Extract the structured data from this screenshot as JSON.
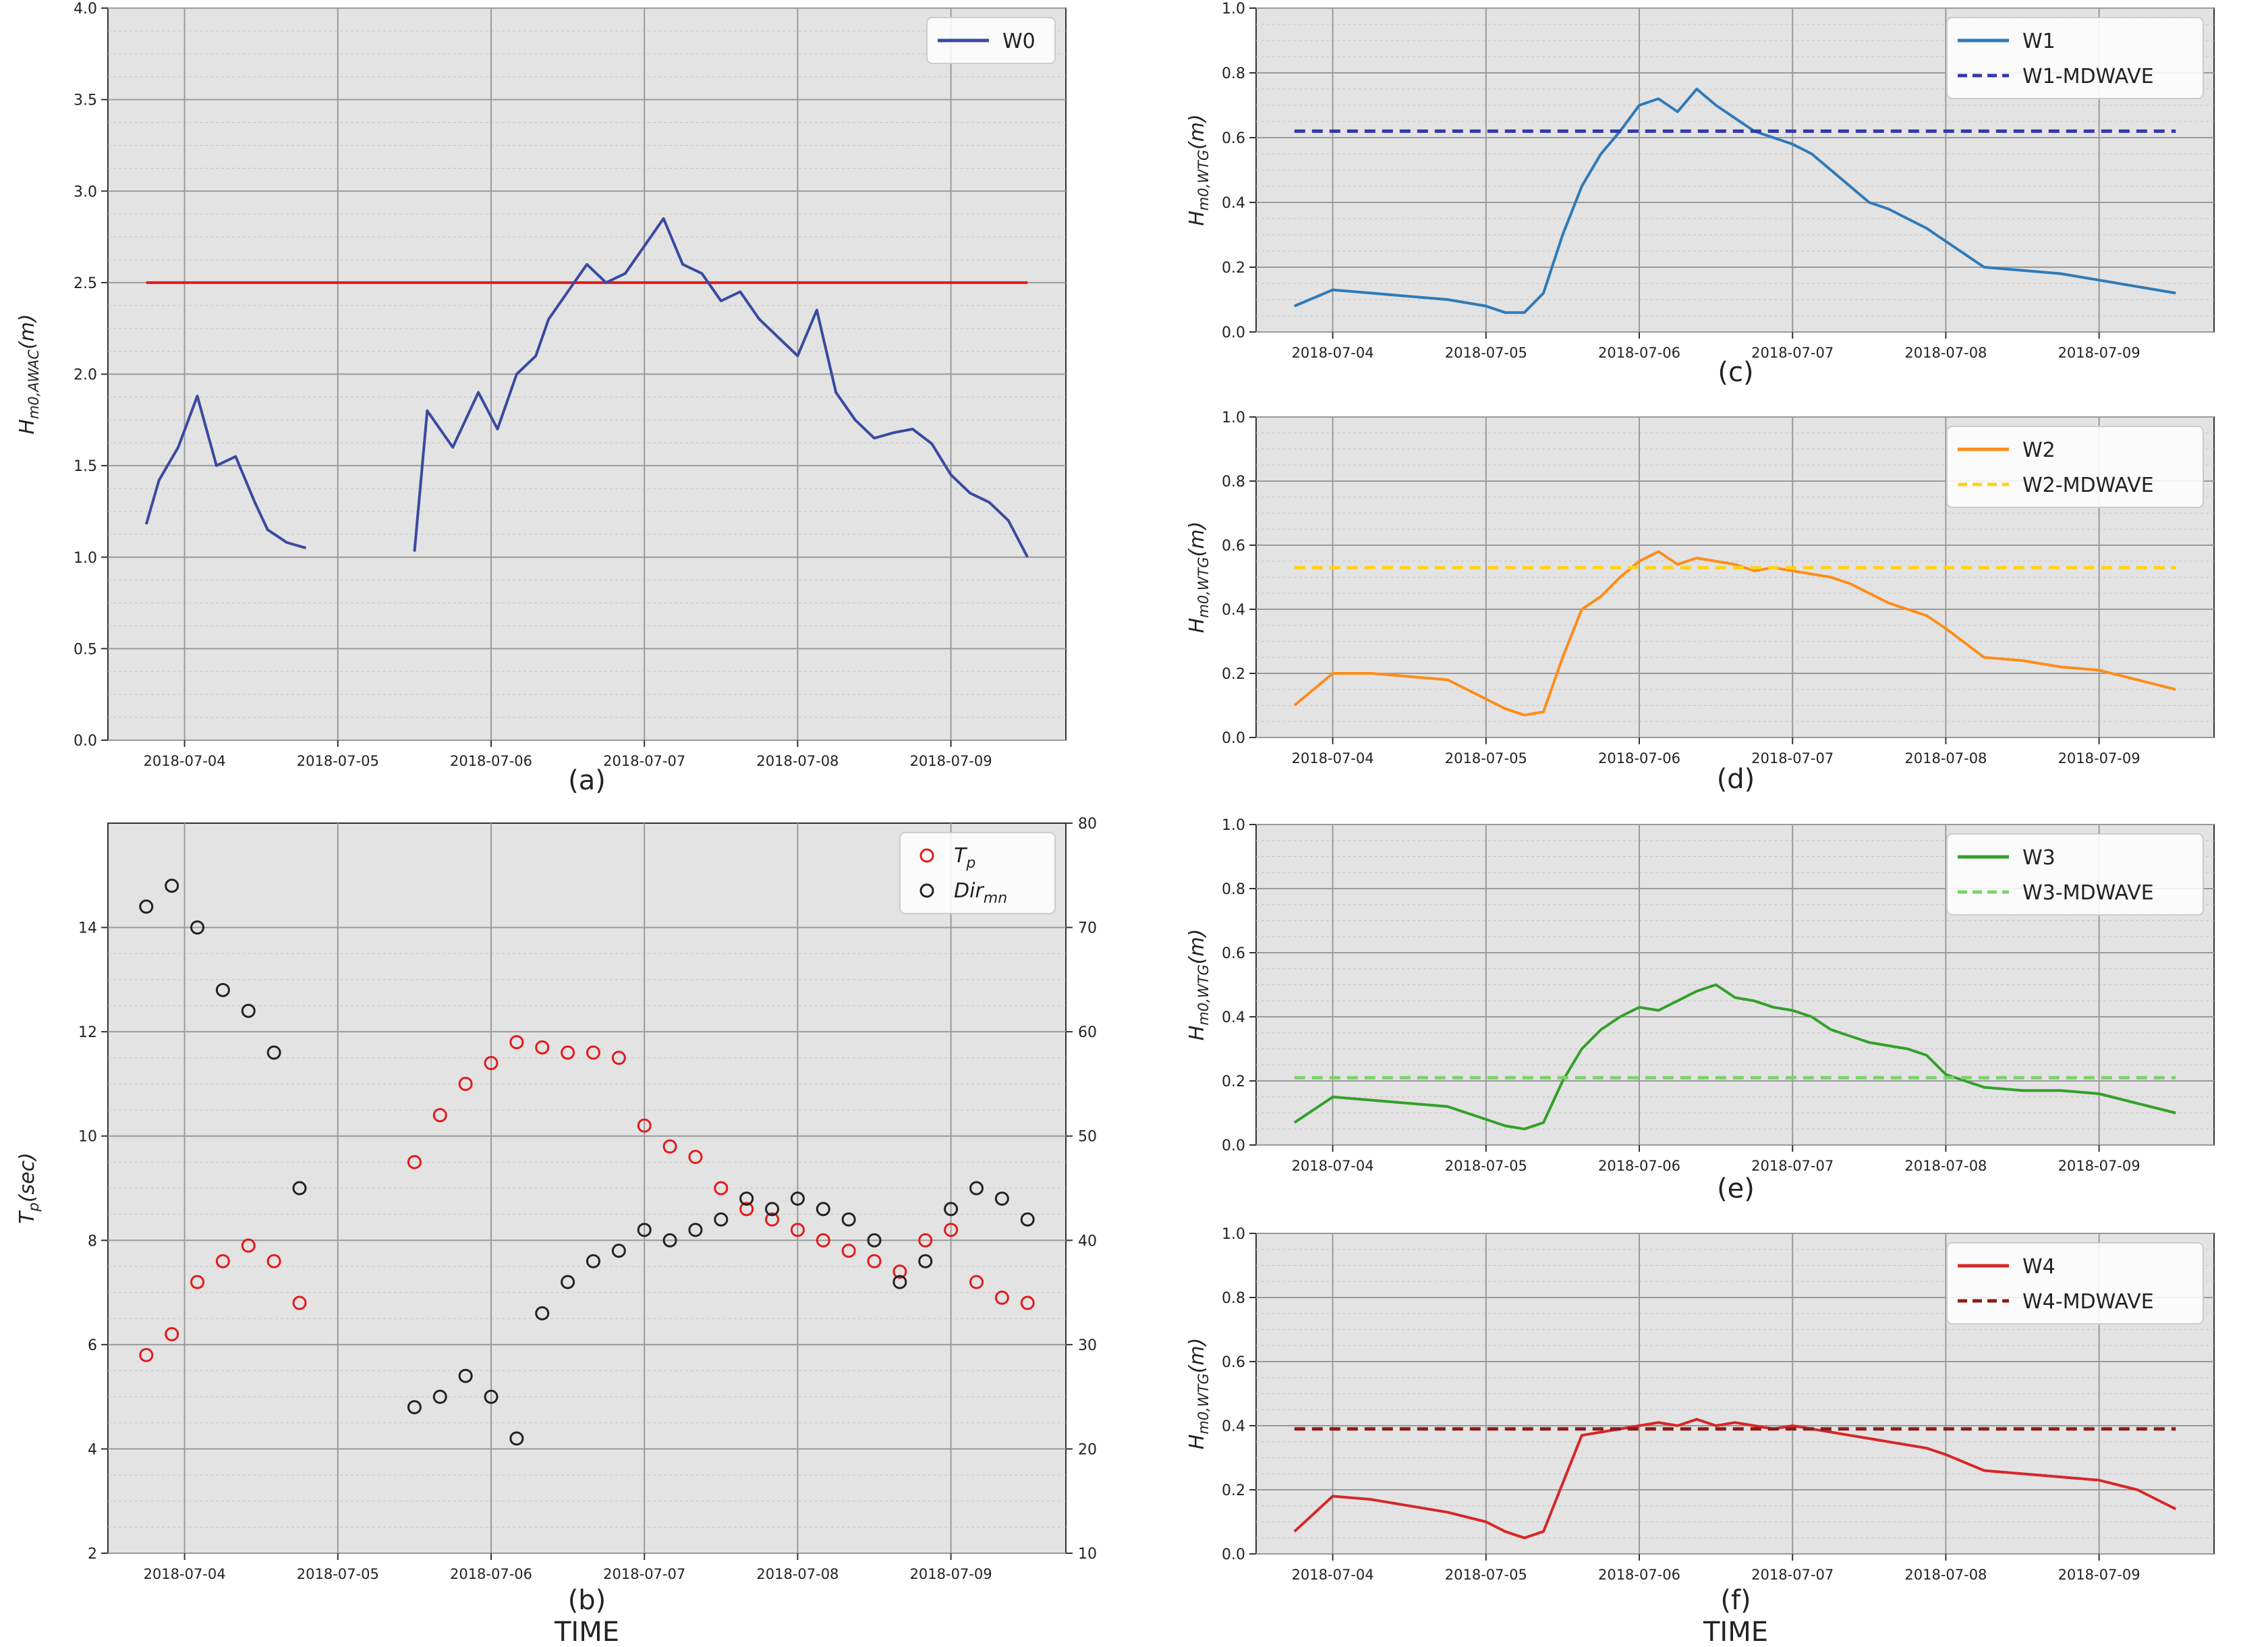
{
  "figure": {
    "x_ticks": [
      "2018-07-04",
      "2018-07-05",
      "2018-07-06",
      "2018-07-07",
      "2018-07-08",
      "2018-07-09"
    ],
    "bottom_xlabel": "TIME"
  },
  "chart_data": [
    {
      "id": "a",
      "panel_label": "(a)",
      "type": "line",
      "xlabel": "",
      "ylabel": "H_{m0,AWAC}(m)",
      "ylabel_main": "H",
      "ylabel_sub": "m0,AWAC",
      "ylabel_tail": "(m)",
      "xlim": [
        "2018-07-03T12:00",
        "2018-07-09T18:00"
      ],
      "ylim": [
        0,
        4.0
      ],
      "yticks": [
        "0.0",
        "0.5",
        "1.0",
        "1.5",
        "2.0",
        "2.5",
        "3.0",
        "3.5",
        "4.0"
      ],
      "grid": true,
      "legend_position": "top-right",
      "series": [
        {
          "name": "W0",
          "color": "#3a4aa0",
          "style": "solid",
          "x": [
            "2018-07-03T18:00",
            "2018-07-03T20:00",
            "2018-07-03T23:00",
            "2018-07-04T02:00",
            "2018-07-04T05:00",
            "2018-07-04T08:00",
            "2018-07-04T11:00",
            "2018-07-04T13:00",
            "2018-07-04T16:00",
            "2018-07-04T19:00"
          ],
          "y": [
            1.18,
            1.42,
            1.6,
            1.88,
            1.5,
            1.55,
            1.3,
            1.15,
            1.08,
            1.05
          ]
        },
        {
          "name": "",
          "color": "#3a4aa0",
          "style": "solid",
          "x": [
            "2018-07-05T12:00",
            "2018-07-05T14:00",
            "2018-07-05T18:00",
            "2018-07-05T22:00",
            "2018-07-06T01:00",
            "2018-07-06T04:00",
            "2018-07-06T07:00",
            "2018-07-06T09:00",
            "2018-07-06T12:00",
            "2018-07-06T15:00",
            "2018-07-06T18:00",
            "2018-07-06T21:00",
            "2018-07-07T00:00",
            "2018-07-07T03:00",
            "2018-07-07T06:00",
            "2018-07-07T09:00",
            "2018-07-07T12:00",
            "2018-07-07T15:00",
            "2018-07-07T18:00",
            "2018-07-07T21:00",
            "2018-07-08T00:00",
            "2018-07-08T03:00",
            "2018-07-08T06:00",
            "2018-07-08T09:00",
            "2018-07-08T12:00",
            "2018-07-08T15:00",
            "2018-07-08T18:00",
            "2018-07-08T21:00",
            "2018-07-09T00:00",
            "2018-07-09T03:00",
            "2018-07-09T06:00",
            "2018-07-09T09:00",
            "2018-07-09T12:00"
          ],
          "y": [
            1.03,
            1.8,
            1.6,
            1.9,
            1.7,
            2.0,
            2.1,
            2.3,
            2.45,
            2.6,
            2.5,
            2.55,
            2.7,
            2.85,
            2.6,
            2.55,
            2.4,
            2.45,
            2.3,
            2.2,
            2.1,
            2.35,
            1.9,
            1.75,
            1.65,
            1.68,
            1.7,
            1.62,
            1.45,
            1.35,
            1.3,
            1.2,
            1.0
          ]
        }
      ],
      "reference_lines": [
        {
          "y": 2.5,
          "color": "#e41a1c",
          "style": "solid",
          "x_range": [
            "2018-07-03T18:00",
            "2018-07-09T12:00"
          ]
        }
      ]
    },
    {
      "id": "b",
      "panel_label": "(b)",
      "type": "scatter",
      "xlabel": "TIME",
      "ylabel": "T_p(sec)",
      "ylabel_main": "T",
      "ylabel_sub": "p",
      "ylabel_tail": "(sec)",
      "xlim": [
        "2018-07-03T12:00",
        "2018-07-09T18:00"
      ],
      "ylim": [
        2,
        16
      ],
      "yticks": [
        "2",
        "4",
        "6",
        "8",
        "10",
        "12",
        "14"
      ],
      "ylim_right": [
        10,
        80
      ],
      "yticks_right": [
        "10",
        "20",
        "30",
        "40",
        "50",
        "60",
        "70",
        "80"
      ],
      "grid": true,
      "legend_position": "top-right",
      "series": [
        {
          "name": "T_p",
          "legend_main": "T",
          "legend_sub": "p",
          "color": "#e41a1c",
          "marker": "open-circle",
          "axis": "left",
          "x": [
            "2018-07-03T18:00",
            "2018-07-03T22:00",
            "2018-07-04T02:00",
            "2018-07-04T06:00",
            "2018-07-04T10:00",
            "2018-07-04T14:00",
            "2018-07-04T18:00",
            "2018-07-05T12:00",
            "2018-07-05T16:00",
            "2018-07-05T20:00",
            "2018-07-06T00:00",
            "2018-07-06T04:00",
            "2018-07-06T08:00",
            "2018-07-06T12:00",
            "2018-07-06T16:00",
            "2018-07-06T20:00",
            "2018-07-07T00:00",
            "2018-07-07T04:00",
            "2018-07-07T08:00",
            "2018-07-07T12:00",
            "2018-07-07T16:00",
            "2018-07-07T20:00",
            "2018-07-08T00:00",
            "2018-07-08T04:00",
            "2018-07-08T08:00",
            "2018-07-08T12:00",
            "2018-07-08T16:00",
            "2018-07-08T20:00",
            "2018-07-09T00:00",
            "2018-07-09T04:00",
            "2018-07-09T08:00",
            "2018-07-09T12:00"
          ],
          "y": [
            5.8,
            6.2,
            7.2,
            7.6,
            7.9,
            7.6,
            6.8,
            9.5,
            10.4,
            11.0,
            11.4,
            11.8,
            11.7,
            11.6,
            11.6,
            11.5,
            10.2,
            9.8,
            9.6,
            9.0,
            8.6,
            8.4,
            8.2,
            8.0,
            7.8,
            7.6,
            7.4,
            8.0,
            8.2,
            7.2,
            6.9,
            6.8
          ]
        },
        {
          "name": "Dir_mn",
          "legend_main": "Dir",
          "legend_sub": "mn",
          "color": "#222222",
          "marker": "open-circle",
          "axis": "right",
          "x": [
            "2018-07-03T18:00",
            "2018-07-03T22:00",
            "2018-07-04T02:00",
            "2018-07-04T06:00",
            "2018-07-04T10:00",
            "2018-07-04T14:00",
            "2018-07-04T18:00",
            "2018-07-05T12:00",
            "2018-07-05T16:00",
            "2018-07-05T20:00",
            "2018-07-06T00:00",
            "2018-07-06T04:00",
            "2018-07-06T08:00",
            "2018-07-06T12:00",
            "2018-07-06T16:00",
            "2018-07-06T20:00",
            "2018-07-07T00:00",
            "2018-07-07T04:00",
            "2018-07-07T08:00",
            "2018-07-07T12:00",
            "2018-07-07T16:00",
            "2018-07-07T20:00",
            "2018-07-08T00:00",
            "2018-07-08T04:00",
            "2018-07-08T08:00",
            "2018-07-08T12:00",
            "2018-07-08T16:00",
            "2018-07-08T20:00",
            "2018-07-09T00:00",
            "2018-07-09T04:00",
            "2018-07-09T08:00",
            "2018-07-09T12:00"
          ],
          "y": [
            72,
            74,
            70,
            64,
            62,
            58,
            45,
            24,
            25,
            27,
            25,
            21,
            33,
            36,
            38,
            39,
            41,
            40,
            41,
            42,
            44,
            43,
            44,
            43,
            42,
            40,
            36,
            38,
            43,
            45,
            44,
            42
          ]
        }
      ]
    },
    {
      "id": "c",
      "panel_label": "(c)",
      "type": "line",
      "ylabel": "H_{m0,WTG}(m)",
      "ylabel_main": "H",
      "ylabel_sub": "m0,WTG",
      "ylabel_tail": "(m)",
      "xlim": [
        "2018-07-03T12:00",
        "2018-07-09T18:00"
      ],
      "ylim": [
        0,
        1.0
      ],
      "yticks": [
        "0.0",
        "0.2",
        "0.4",
        "0.6",
        "0.8",
        "1.0"
      ],
      "grid": true,
      "legend_position": "top-right",
      "series": [
        {
          "name": "W1",
          "color": "#2e7ab8",
          "style": "solid",
          "x": [
            "2018-07-03T18:00",
            "2018-07-04T00:00",
            "2018-07-04T06:00",
            "2018-07-04T12:00",
            "2018-07-04T18:00",
            "2018-07-05T00:00",
            "2018-07-05T03:00",
            "2018-07-05T06:00",
            "2018-07-05T09:00",
            "2018-07-05T12:00",
            "2018-07-05T15:00",
            "2018-07-05T18:00",
            "2018-07-05T21:00",
            "2018-07-06T00:00",
            "2018-07-06T03:00",
            "2018-07-06T06:00",
            "2018-07-06T09:00",
            "2018-07-06T12:00",
            "2018-07-06T15:00",
            "2018-07-06T18:00",
            "2018-07-06T21:00",
            "2018-07-07T00:00",
            "2018-07-07T03:00",
            "2018-07-07T06:00",
            "2018-07-07T09:00",
            "2018-07-07T12:00",
            "2018-07-07T15:00",
            "2018-07-07T18:00",
            "2018-07-07T21:00",
            "2018-07-08T00:00",
            "2018-07-08T06:00",
            "2018-07-08T12:00",
            "2018-07-08T18:00",
            "2018-07-09T00:00",
            "2018-07-09T06:00",
            "2018-07-09T12:00"
          ],
          "y": [
            0.08,
            0.13,
            0.12,
            0.11,
            0.1,
            0.08,
            0.06,
            0.06,
            0.12,
            0.3,
            0.45,
            0.55,
            0.62,
            0.7,
            0.72,
            0.68,
            0.75,
            0.7,
            0.66,
            0.62,
            0.6,
            0.58,
            0.55,
            0.5,
            0.45,
            0.4,
            0.38,
            0.35,
            0.32,
            0.28,
            0.2,
            0.19,
            0.18,
            0.16,
            0.14,
            0.12
          ]
        },
        {
          "name": "W1-MDWAVE",
          "color": "#2f3aa8",
          "style": "dashed",
          "x": [
            "2018-07-03T18:00",
            "2018-07-09T12:00"
          ],
          "y": [
            0.62,
            0.62
          ]
        }
      ]
    },
    {
      "id": "d",
      "panel_label": "(d)",
      "type": "line",
      "ylabel": "H_{m0,WTG}(m)",
      "ylabel_main": "H",
      "ylabel_sub": "m0,WTG",
      "ylabel_tail": "(m)",
      "xlim": [
        "2018-07-03T12:00",
        "2018-07-09T18:00"
      ],
      "ylim": [
        0,
        1.0
      ],
      "yticks": [
        "0.0",
        "0.2",
        "0.4",
        "0.6",
        "0.8",
        "1.0"
      ],
      "grid": true,
      "legend_position": "top-right",
      "series": [
        {
          "name": "W2",
          "color": "#ff8c1a",
          "style": "solid",
          "x": [
            "2018-07-03T18:00",
            "2018-07-04T00:00",
            "2018-07-04T06:00",
            "2018-07-04T12:00",
            "2018-07-04T18:00",
            "2018-07-05T00:00",
            "2018-07-05T03:00",
            "2018-07-05T06:00",
            "2018-07-05T09:00",
            "2018-07-05T12:00",
            "2018-07-05T15:00",
            "2018-07-05T18:00",
            "2018-07-05T21:00",
            "2018-07-06T00:00",
            "2018-07-06T03:00",
            "2018-07-06T06:00",
            "2018-07-06T09:00",
            "2018-07-06T12:00",
            "2018-07-06T15:00",
            "2018-07-06T18:00",
            "2018-07-06T21:00",
            "2018-07-07T00:00",
            "2018-07-07T03:00",
            "2018-07-07T06:00",
            "2018-07-07T09:00",
            "2018-07-07T12:00",
            "2018-07-07T15:00",
            "2018-07-07T18:00",
            "2018-07-07T21:00",
            "2018-07-08T00:00",
            "2018-07-08T06:00",
            "2018-07-08T12:00",
            "2018-07-08T18:00",
            "2018-07-09T00:00",
            "2018-07-09T06:00",
            "2018-07-09T12:00"
          ],
          "y": [
            0.1,
            0.2,
            0.2,
            0.19,
            0.18,
            0.12,
            0.09,
            0.07,
            0.08,
            0.25,
            0.4,
            0.44,
            0.5,
            0.55,
            0.58,
            0.54,
            0.56,
            0.55,
            0.54,
            0.52,
            0.53,
            0.52,
            0.51,
            0.5,
            0.48,
            0.45,
            0.42,
            0.4,
            0.38,
            0.34,
            0.25,
            0.24,
            0.22,
            0.21,
            0.18,
            0.15
          ]
        },
        {
          "name": "W2-MDWAVE",
          "color": "#ffd21a",
          "style": "dashed",
          "x": [
            "2018-07-03T18:00",
            "2018-07-09T12:00"
          ],
          "y": [
            0.53,
            0.53
          ]
        }
      ]
    },
    {
      "id": "e",
      "panel_label": "(e)",
      "type": "line",
      "ylabel": "H_{m0,WTG}(m)",
      "ylabel_main": "H",
      "ylabel_sub": "m0,WTG",
      "ylabel_tail": "(m)",
      "xlim": [
        "2018-07-03T12:00",
        "2018-07-09T18:00"
      ],
      "ylim": [
        0,
        1.0
      ],
      "yticks": [
        "0.0",
        "0.2",
        "0.4",
        "0.6",
        "0.8",
        "1.0"
      ],
      "grid": true,
      "legend_position": "top-right",
      "series": [
        {
          "name": "W3",
          "color": "#33a02c",
          "style": "solid",
          "x": [
            "2018-07-03T18:00",
            "2018-07-04T00:00",
            "2018-07-04T06:00",
            "2018-07-04T12:00",
            "2018-07-04T18:00",
            "2018-07-05T00:00",
            "2018-07-05T03:00",
            "2018-07-05T06:00",
            "2018-07-05T09:00",
            "2018-07-05T12:00",
            "2018-07-05T15:00",
            "2018-07-05T18:00",
            "2018-07-05T21:00",
            "2018-07-06T00:00",
            "2018-07-06T03:00",
            "2018-07-06T06:00",
            "2018-07-06T09:00",
            "2018-07-06T12:00",
            "2018-07-06T15:00",
            "2018-07-06T18:00",
            "2018-07-06T21:00",
            "2018-07-07T00:00",
            "2018-07-07T03:00",
            "2018-07-07T06:00",
            "2018-07-07T09:00",
            "2018-07-07T12:00",
            "2018-07-07T15:00",
            "2018-07-07T18:00",
            "2018-07-07T21:00",
            "2018-07-08T00:00",
            "2018-07-08T06:00",
            "2018-07-08T12:00",
            "2018-07-08T18:00",
            "2018-07-09T00:00",
            "2018-07-09T06:00",
            "2018-07-09T12:00"
          ],
          "y": [
            0.07,
            0.15,
            0.14,
            0.13,
            0.12,
            0.08,
            0.06,
            0.05,
            0.07,
            0.2,
            0.3,
            0.36,
            0.4,
            0.43,
            0.42,
            0.45,
            0.48,
            0.5,
            0.46,
            0.45,
            0.43,
            0.42,
            0.4,
            0.36,
            0.34,
            0.32,
            0.31,
            0.3,
            0.28,
            0.22,
            0.18,
            0.17,
            0.17,
            0.16,
            0.13,
            0.1
          ]
        },
        {
          "name": "W3-MDWAVE",
          "color": "#7bd36b",
          "style": "dashed",
          "x": [
            "2018-07-03T18:00",
            "2018-07-09T12:00"
          ],
          "y": [
            0.21,
            0.21
          ]
        }
      ]
    },
    {
      "id": "f",
      "panel_label": "(f)",
      "type": "line",
      "xlabel": "TIME",
      "ylabel": "H_{m0,WTG}(m)",
      "ylabel_main": "H",
      "ylabel_sub": "m0,WTG",
      "ylabel_tail": "(m)",
      "xlim": [
        "2018-07-03T12:00",
        "2018-07-09T18:00"
      ],
      "ylim": [
        0,
        1.0
      ],
      "yticks": [
        "0.0",
        "0.2",
        "0.4",
        "0.6",
        "0.8",
        "1.0"
      ],
      "grid": true,
      "legend_position": "top-right",
      "series": [
        {
          "name": "W4",
          "color": "#d62728",
          "style": "solid",
          "x": [
            "2018-07-03T18:00",
            "2018-07-04T00:00",
            "2018-07-04T06:00",
            "2018-07-04T12:00",
            "2018-07-04T18:00",
            "2018-07-05T00:00",
            "2018-07-05T03:00",
            "2018-07-05T06:00",
            "2018-07-05T09:00",
            "2018-07-05T12:00",
            "2018-07-05T15:00",
            "2018-07-05T18:00",
            "2018-07-05T21:00",
            "2018-07-06T00:00",
            "2018-07-06T03:00",
            "2018-07-06T06:00",
            "2018-07-06T09:00",
            "2018-07-06T12:00",
            "2018-07-06T15:00",
            "2018-07-06T18:00",
            "2018-07-06T21:00",
            "2018-07-07T00:00",
            "2018-07-07T03:00",
            "2018-07-07T06:00",
            "2018-07-07T09:00",
            "2018-07-07T12:00",
            "2018-07-07T15:00",
            "2018-07-07T18:00",
            "2018-07-07T21:00",
            "2018-07-08T00:00",
            "2018-07-08T06:00",
            "2018-07-08T12:00",
            "2018-07-08T18:00",
            "2018-07-09T00:00",
            "2018-07-09T06:00",
            "2018-07-09T12:00"
          ],
          "y": [
            0.07,
            0.18,
            0.17,
            0.15,
            0.13,
            0.1,
            0.07,
            0.05,
            0.07,
            0.22,
            0.37,
            0.38,
            0.39,
            0.4,
            0.41,
            0.4,
            0.42,
            0.4,
            0.41,
            0.4,
            0.39,
            0.4,
            0.39,
            0.38,
            0.37,
            0.36,
            0.35,
            0.34,
            0.33,
            0.31,
            0.26,
            0.25,
            0.24,
            0.23,
            0.2,
            0.14
          ]
        },
        {
          "name": "W4-MDWAVE",
          "color": "#8b1a1a",
          "style": "dashed",
          "x": [
            "2018-07-03T18:00",
            "2018-07-09T12:00"
          ],
          "y": [
            0.39,
            0.39
          ]
        }
      ]
    }
  ]
}
